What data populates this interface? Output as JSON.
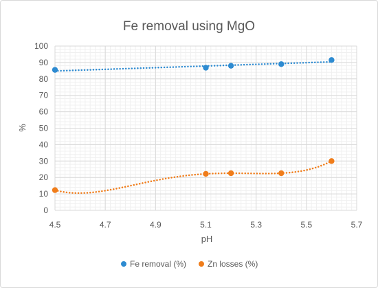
{
  "chart_data": {
    "type": "scatter",
    "title": "Fe removal  using MgO",
    "xlabel": "pH",
    "ylabel": "%",
    "xlim": [
      4.5,
      5.7
    ],
    "ylim": [
      0,
      100
    ],
    "x_ticks": [
      "4.5",
      "4.7",
      "4.9",
      "5.1",
      "5.3",
      "5.5",
      "5.7"
    ],
    "y_ticks": [
      "0",
      "10",
      "20",
      "30",
      "40",
      "50",
      "60",
      "70",
      "80",
      "90",
      "100"
    ],
    "grid": true,
    "legend_position": "bottom",
    "series": [
      {
        "name": "Fe removal (%)",
        "color": "#2e8bd1",
        "trendline": "linear dotted",
        "points": [
          {
            "x": 4.5,
            "y": 85.5
          },
          {
            "x": 5.1,
            "y": 86.8
          },
          {
            "x": 5.2,
            "y": 88.0
          },
          {
            "x": 5.4,
            "y": 89.0
          },
          {
            "x": 5.6,
            "y": 91.5
          }
        ]
      },
      {
        "name": "Zn losses (%)",
        "color": "#f07d1b",
        "trendline": "polynomial dotted",
        "points": [
          {
            "x": 4.5,
            "y": 12.3
          },
          {
            "x": 5.1,
            "y": 22.2
          },
          {
            "x": 5.2,
            "y": 22.6
          },
          {
            "x": 5.4,
            "y": 22.6
          },
          {
            "x": 5.6,
            "y": 30.0
          }
        ]
      }
    ]
  }
}
